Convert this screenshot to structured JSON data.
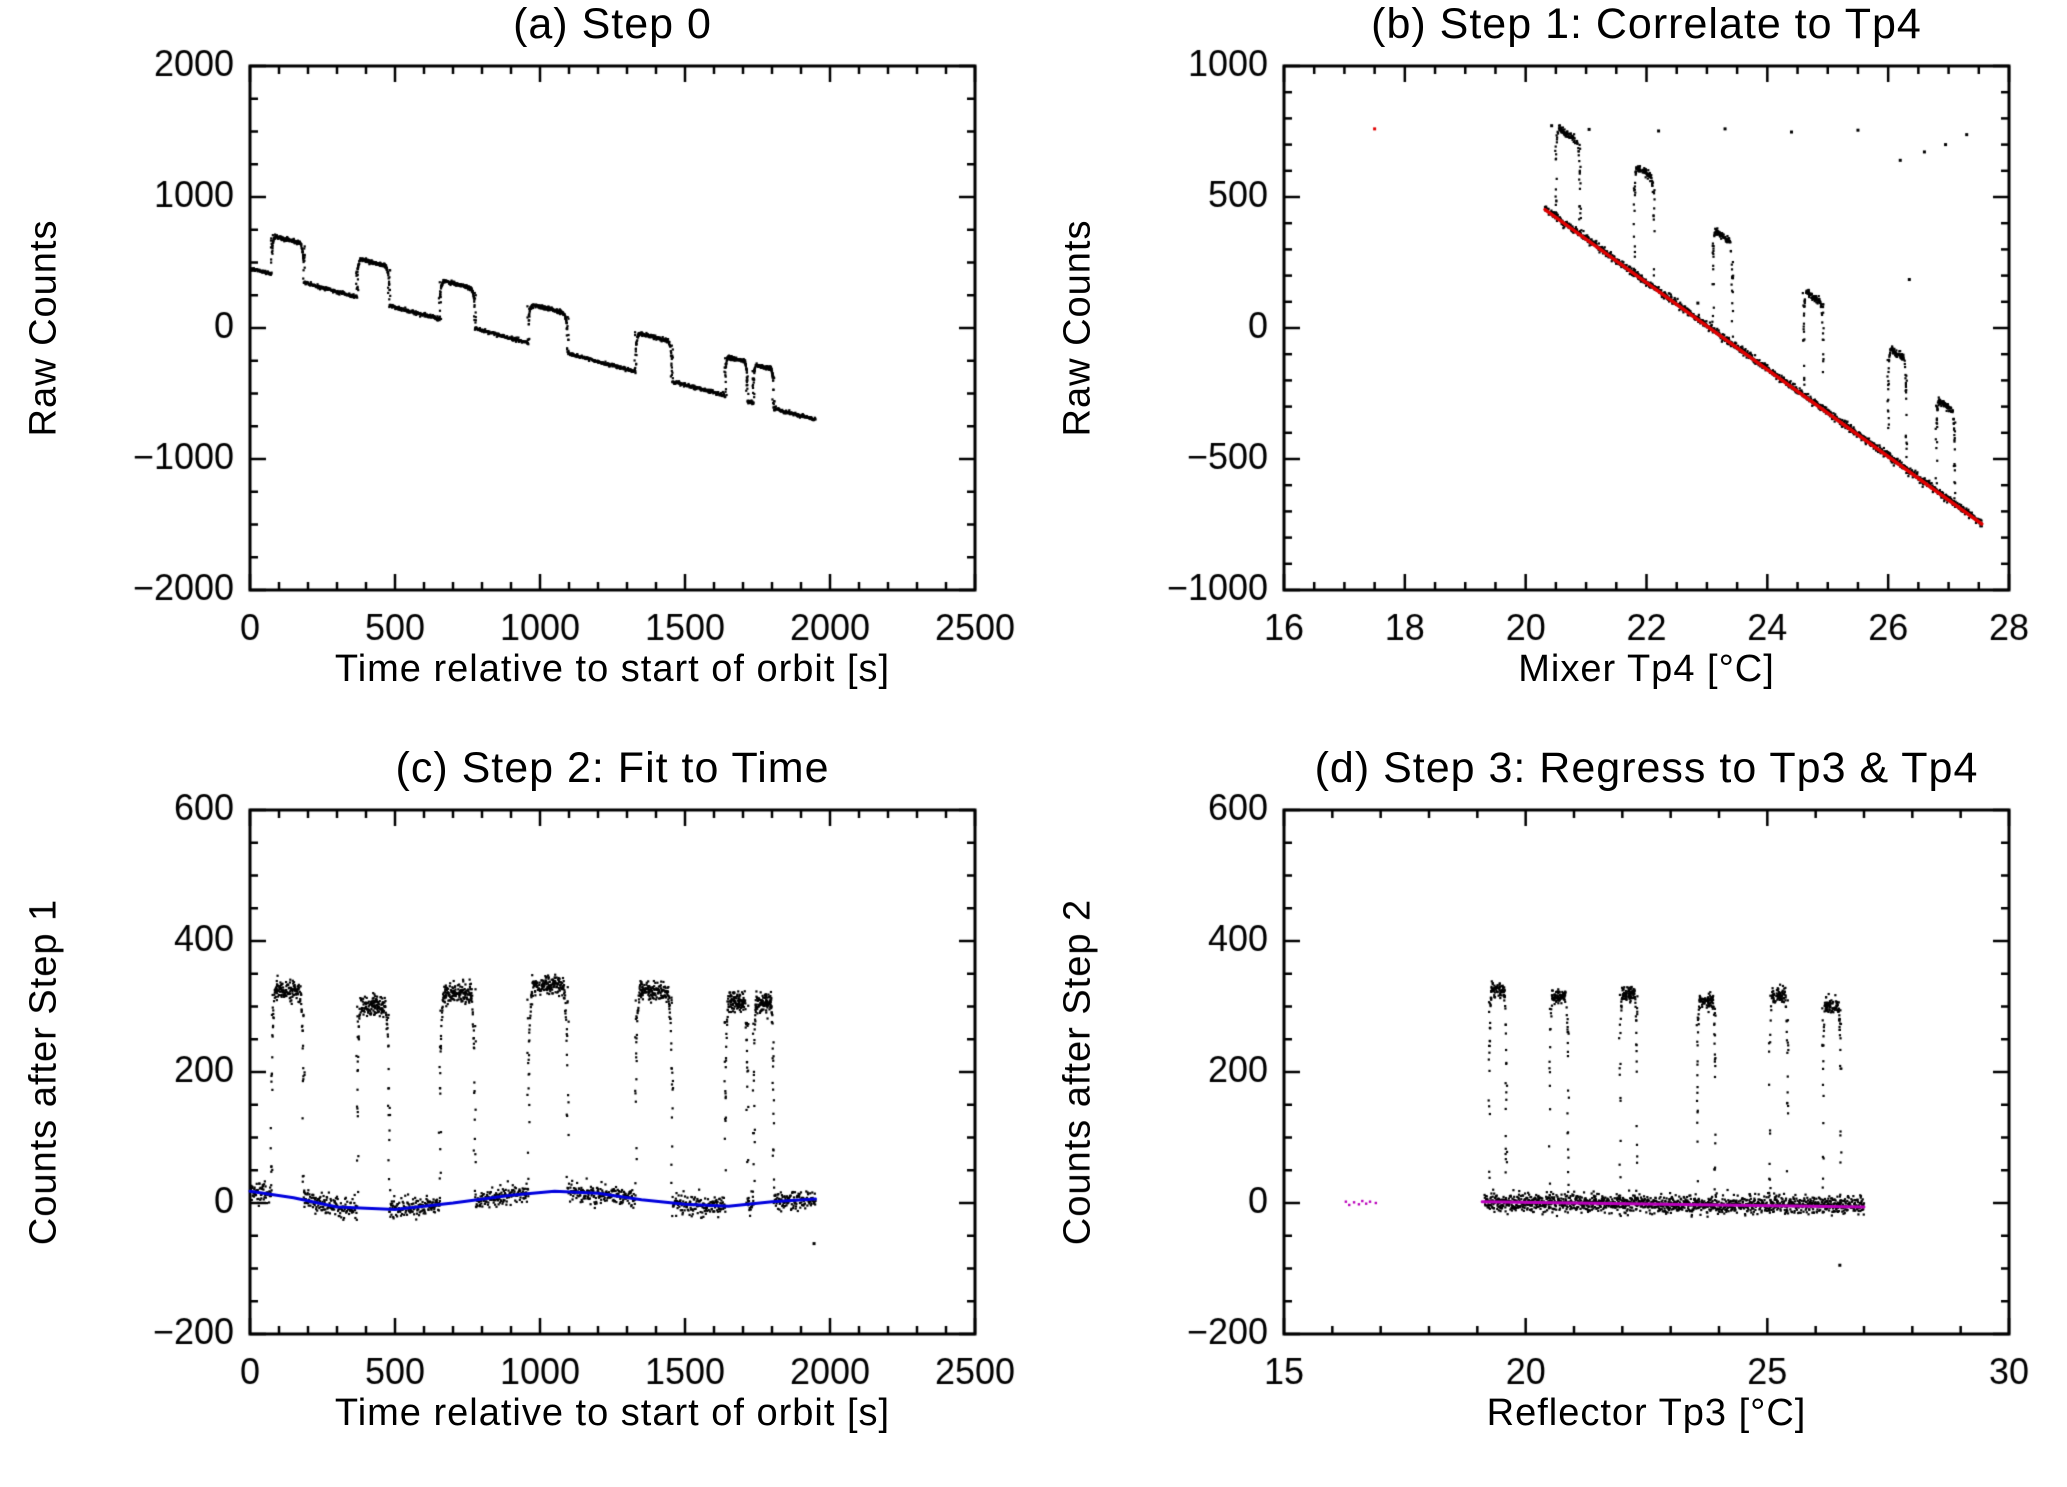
{
  "chart_data": [
    {
      "id": "a",
      "type": "scatter",
      "title": "(a) Step 0",
      "xlabel": "Time relative to start of orbit [s]",
      "ylabel": "Raw Counts",
      "xlim": [
        0,
        2500
      ],
      "ylim": [
        -2000,
        2000
      ],
      "xticks": [
        0,
        500,
        1000,
        1500,
        2000,
        2500
      ],
      "yticks": [
        -2000,
        -1000,
        0,
        1000,
        2000
      ],
      "xminor": 5,
      "yminor": 4,
      "grid": false,
      "point_color": "#000000",
      "scatter": {
        "x_range": [
          0,
          1950
        ],
        "n": 1600,
        "noise": 7,
        "overlay": false,
        "baseline": [
          [
            0,
            455
          ],
          [
            1950,
            -700
          ]
        ],
        "pulses": [
          [
            75,
            185,
            295
          ],
          [
            370,
            480,
            295
          ],
          [
            655,
            775,
            300
          ],
          [
            960,
            1095,
            300
          ],
          [
            1330,
            1455,
            300
          ],
          [
            1640,
            1715,
            300
          ],
          [
            1737,
            1805,
            295
          ]
        ]
      }
    },
    {
      "id": "b",
      "type": "scatter",
      "title": "(b) Step 1: Correlate to Tp4",
      "xlabel": "Mixer Tp4 [°C]",
      "ylabel": "Raw Counts",
      "xlim": [
        16,
        28
      ],
      "ylim": [
        -1000,
        1000
      ],
      "xticks": [
        16,
        18,
        20,
        22,
        24,
        26,
        28
      ],
      "yticks": [
        -1000,
        -500,
        0,
        500,
        1000
      ],
      "xminor": 4,
      "yminor": 5,
      "grid": false,
      "point_color": "#000000",
      "scatter": {
        "x_range": [
          20.32,
          27.55
        ],
        "n": 1500,
        "noise": 7,
        "overlay": true,
        "baseline": [
          [
            20.32,
            455
          ],
          [
            27.55,
            -745
          ]
        ],
        "pulses": [
          [
            20.5,
            20.9,
            345
          ],
          [
            21.8,
            22.12,
            415
          ],
          [
            23.1,
            23.42,
            385
          ],
          [
            24.6,
            24.92,
            400
          ],
          [
            26.0,
            26.3,
            415
          ],
          [
            26.8,
            27.1,
            350
          ]
        ]
      },
      "fit_line": {
        "color": "#e00000",
        "width": 3.5,
        "points": [
          [
            20.32,
            452
          ],
          [
            27.55,
            -748
          ]
        ]
      },
      "stray_points": [
        {
          "x": 17.5,
          "y": 760,
          "color": "#e00000"
        },
        {
          "x": 20.43,
          "y": 772
        },
        {
          "x": 20.62,
          "y": 748
        },
        {
          "x": 21.05,
          "y": 758
        },
        {
          "x": 22.2,
          "y": 752
        },
        {
          "x": 23.3,
          "y": 760
        },
        {
          "x": 24.4,
          "y": 748
        },
        {
          "x": 25.5,
          "y": 755
        },
        {
          "x": 26.2,
          "y": 640
        },
        {
          "x": 26.6,
          "y": 672
        },
        {
          "x": 26.95,
          "y": 700
        },
        {
          "x": 27.3,
          "y": 738
        },
        {
          "x": 22.85,
          "y": 95
        },
        {
          "x": 26.35,
          "y": 185
        }
      ]
    },
    {
      "id": "c",
      "type": "scatter",
      "title": "(c) Step 2: Fit to Time",
      "xlabel": "Time relative to start of orbit [s]",
      "ylabel": "Counts after Step 1",
      "xlim": [
        0,
        2500
      ],
      "ylim": [
        -200,
        600
      ],
      "xticks": [
        0,
        500,
        1000,
        1500,
        2000,
        2500
      ],
      "yticks": [
        -200,
        0,
        200,
        400,
        600
      ],
      "xminor": 5,
      "yminor": 4,
      "grid": false,
      "point_color": "#000000",
      "scatter": {
        "x_range": [
          0,
          1950
        ],
        "n": 1600,
        "noise": 8,
        "overlay": false,
        "baseline": [
          [
            0,
            18
          ],
          [
            150,
            8
          ],
          [
            300,
            -6
          ],
          [
            500,
            -10
          ],
          [
            700,
            0
          ],
          [
            900,
            12
          ],
          [
            1050,
            18
          ],
          [
            1200,
            15
          ],
          [
            1350,
            5
          ],
          [
            1500,
            -2
          ],
          [
            1650,
            -5
          ],
          [
            1800,
            2
          ],
          [
            1950,
            6
          ]
        ],
        "pulses": [
          [
            75,
            185,
            315
          ],
          [
            370,
            480,
            310
          ],
          [
            655,
            775,
            320
          ],
          [
            960,
            1095,
            315
          ],
          [
            1330,
            1455,
            320
          ],
          [
            1640,
            1715,
            310
          ],
          [
            1737,
            1805,
            305
          ]
        ]
      },
      "fit_line": {
        "color": "#0000dd",
        "width": 3,
        "points": [
          [
            0,
            18
          ],
          [
            150,
            8
          ],
          [
            300,
            -6
          ],
          [
            500,
            -10
          ],
          [
            700,
            0
          ],
          [
            900,
            12
          ],
          [
            1050,
            18
          ],
          [
            1200,
            15
          ],
          [
            1350,
            5
          ],
          [
            1500,
            -2
          ],
          [
            1650,
            -5
          ],
          [
            1800,
            2
          ],
          [
            1950,
            6
          ]
        ]
      },
      "stray_points": [
        {
          "x": 1945,
          "y": -62
        }
      ]
    },
    {
      "id": "d",
      "type": "scatter",
      "title": "(d) Step 3: Regress to Tp3 & Tp4",
      "xlabel": "Reflector Tp3 [°C]",
      "ylabel": "Counts after Step 2",
      "xlim": [
        15,
        30
      ],
      "ylim": [
        -200,
        600
      ],
      "xticks": [
        15,
        20,
        25,
        30
      ],
      "yticks": [
        -200,
        0,
        200,
        400,
        600
      ],
      "xminor": 5,
      "yminor": 4,
      "grid": false,
      "point_color": "#000000",
      "scatter": {
        "x_range": [
          19.15,
          27.0
        ],
        "n": 1500,
        "noise": 7,
        "overlay": true,
        "baseline": [
          [
            19.15,
            0
          ],
          [
            27.0,
            -4
          ]
        ],
        "pulses": [
          [
            19.25,
            19.6,
            325
          ],
          [
            20.5,
            20.88,
            315
          ],
          [
            21.95,
            22.3,
            320
          ],
          [
            23.55,
            23.92,
            310
          ],
          [
            25.05,
            25.42,
            320
          ],
          [
            26.15,
            26.52,
            305
          ]
        ]
      },
      "fit_line": {
        "color": "#bb00bb",
        "width": 3,
        "points": [
          [
            19.1,
            2
          ],
          [
            27.0,
            -6
          ]
        ]
      },
      "extra_points": {
        "color": "#bb00bb",
        "pts": [
          [
            16.28,
            2
          ],
          [
            16.35,
            -3
          ],
          [
            16.45,
            1
          ],
          [
            16.55,
            -2
          ],
          [
            16.62,
            3
          ],
          [
            16.7,
            -1
          ],
          [
            16.78,
            2
          ],
          [
            16.9,
            0
          ]
        ]
      },
      "stray_points": [
        {
          "x": 26.5,
          "y": -95
        }
      ]
    }
  ]
}
